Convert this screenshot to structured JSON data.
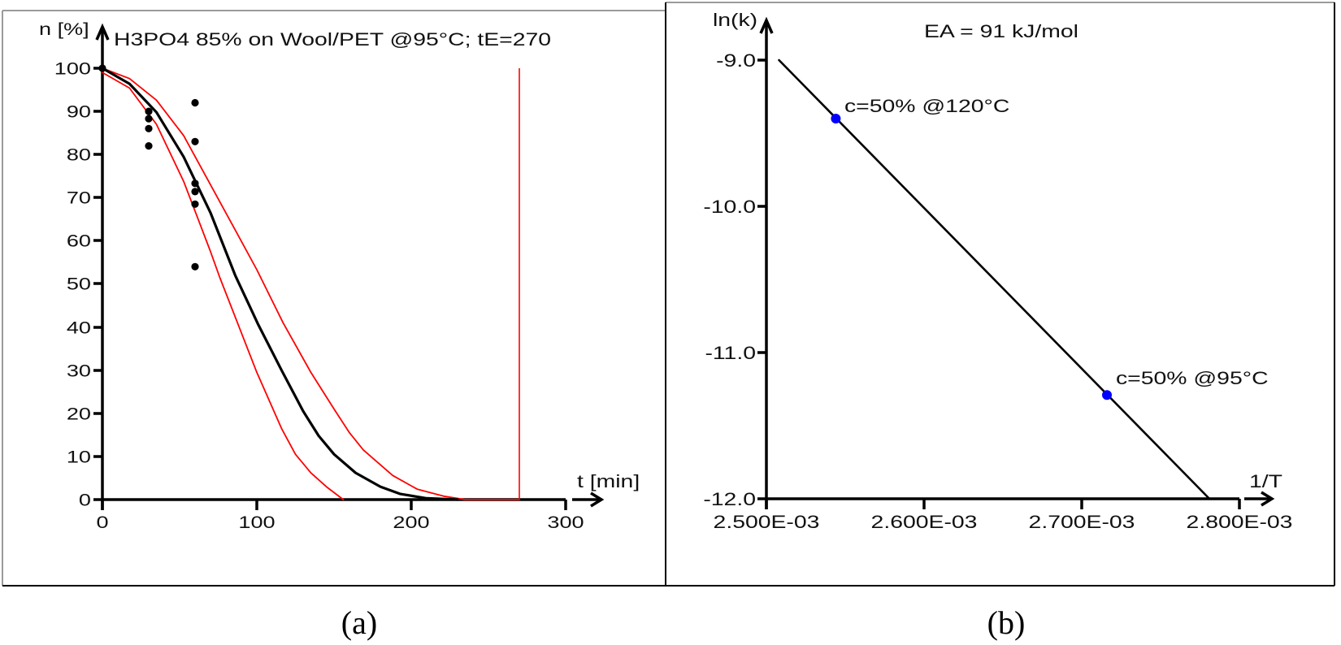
{
  "figure": {
    "panels": [
      {
        "caption": "(a)"
      },
      {
        "caption": "(b)"
      }
    ]
  },
  "chart_data": [
    {
      "type": "line",
      "title": "H3PO4 85% on Wool/PET @95°C; tE=270",
      "xlabel": "t [min]",
      "ylabel": "n [%]",
      "xlim": [
        0,
        300
      ],
      "ylim": [
        0,
        100
      ],
      "xticks": [
        0,
        100,
        200,
        300
      ],
      "xtick_labels": [
        "0",
        "100",
        "200",
        "300"
      ],
      "yticks": [
        0,
        10,
        20,
        30,
        40,
        50,
        60,
        70,
        80,
        90,
        100
      ],
      "ytick_labels": [
        "0",
        "10",
        "20",
        "30",
        "40",
        "50",
        "60",
        "70",
        "80",
        "90",
        "100"
      ],
      "grid": false,
      "legend": null,
      "series": [
        {
          "name": "upper bound",
          "type": "line",
          "color": "#ff0000",
          "x": [
            0,
            17.5,
            35,
            52.6,
            70,
            86,
            100,
            117,
            135,
            150,
            160,
            169,
            188,
            204,
            221,
            235,
            270
          ],
          "y": [
            100,
            97.6,
            92.6,
            84.4,
            73,
            62.5,
            53.3,
            41,
            29.5,
            21,
            15.5,
            11.5,
            5.6,
            2.4,
            0.8,
            0,
            0
          ]
        },
        {
          "name": "lower bound",
          "type": "line",
          "color": "#ff0000",
          "x": [
            0,
            17.5,
            35,
            52.6,
            62,
            70,
            76,
            88,
            100,
            116,
            125,
            135,
            145,
            156
          ],
          "y": [
            99,
            95.4,
            87,
            73.8,
            65,
            57.5,
            51.5,
            40.5,
            29.5,
            16.5,
            10.5,
            6.2,
            3,
            0
          ]
        },
        {
          "name": "model fit",
          "type": "line",
          "color": "#000000",
          "x": [
            0,
            17.5,
            35,
            52.6,
            70,
            86,
            101,
            116,
            130,
            140,
            150,
            164,
            180,
            193,
            210,
            230
          ],
          "y": [
            100,
            96.4,
            89.8,
            79.5,
            66.5,
            52,
            40.5,
            30,
            20.5,
            14.8,
            10.5,
            6.2,
            3,
            1.3,
            0.3,
            0
          ]
        },
        {
          "name": "measured",
          "type": "scatter",
          "color": "#000000",
          "x": [
            0,
            30,
            30,
            30,
            30,
            60,
            60,
            60,
            60,
            60,
            60
          ],
          "y": [
            100,
            90,
            88.3,
            86,
            82,
            92,
            83,
            73.3,
            71.4,
            68.5,
            54
          ]
        }
      ],
      "annotations": [
        {
          "type": "vline",
          "x": 270,
          "y0": 0,
          "y1": 100,
          "color": "#ff0000",
          "meaning": "tE=270"
        }
      ]
    },
    {
      "type": "line",
      "title": "EA = 91 kJ/mol",
      "xlabel": "1/T",
      "ylabel": "ln(k)",
      "xlim": [
        0.0025,
        0.0028
      ],
      "ylim": [
        -12,
        -9
      ],
      "xticks": [
        0.0025,
        0.0026,
        0.0027,
        0.0028
      ],
      "xtick_labels": [
        "2.500E-03",
        "2.600E-03",
        "2.700E-03",
        "2.800E-03"
      ],
      "yticks": [
        -12,
        -11,
        -10,
        -9
      ],
      "ytick_labels": [
        "-12.0",
        "-11.0",
        "-10.0",
        "-9.0"
      ],
      "grid": false,
      "legend": null,
      "series": [
        {
          "name": "Arrhenius fit",
          "type": "line",
          "color": "#000000",
          "x": [
            0.002508,
            0.002781
          ],
          "y": [
            -9.0,
            -12.0
          ]
        },
        {
          "name": "c=50%",
          "type": "scatter",
          "color": "#0000ff",
          "x": [
            0.002544,
            0.002716
          ],
          "y": [
            -9.4,
            -11.29
          ],
          "labels": [
            "c=50% @120°C",
            "c=50% @95°C"
          ]
        }
      ]
    }
  ]
}
